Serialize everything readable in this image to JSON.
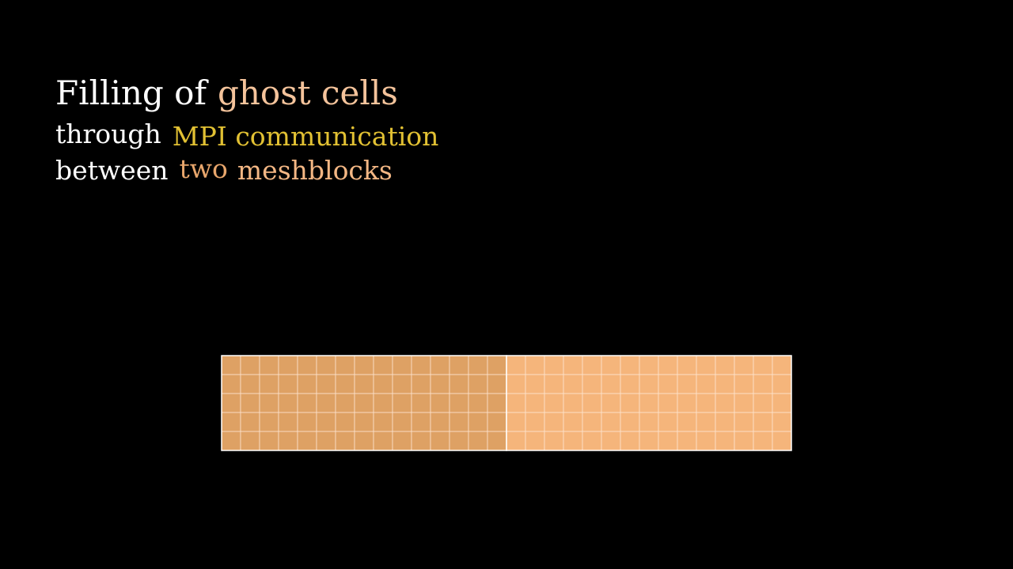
{
  "title": {
    "parts": [
      {
        "text": "Filling of",
        "color": "#ffffff"
      },
      {
        "text": "ghost cells",
        "color": "#f4c39b"
      }
    ]
  },
  "subtitle1": {
    "parts": [
      {
        "text": "through",
        "color": "#ffffff"
      },
      {
        "text": "MPI communication",
        "color": "#e2c133"
      }
    ]
  },
  "subtitle2": {
    "parts": [
      {
        "text": "between",
        "color": "#ffffff"
      },
      {
        "text": "two",
        "color": "#e8a66c"
      },
      {
        "text": "meshblocks",
        "color": "#f4b784"
      }
    ]
  },
  "meshblocks": [
    {
      "cols": 15,
      "rows": 5,
      "fill": "#dea164"
    },
    {
      "cols": 15,
      "rows": 5,
      "fill": "#f5b57b"
    }
  ],
  "colors": {
    "background": "#000000",
    "grid_line": "#fde6d2",
    "outline": "#ffffff"
  }
}
